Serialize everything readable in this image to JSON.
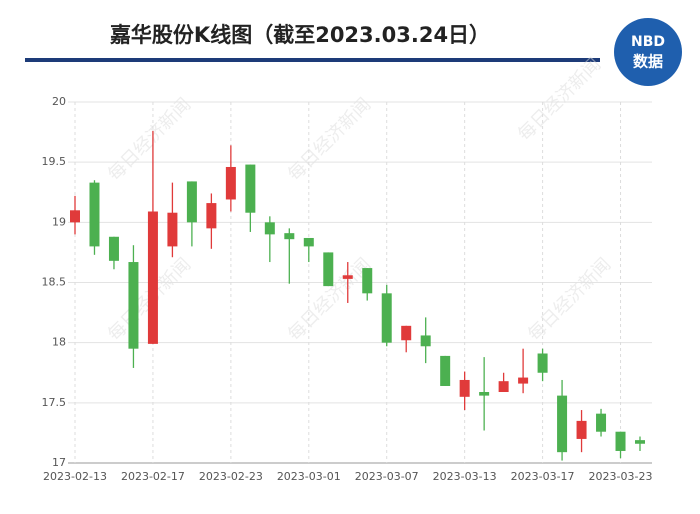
{
  "chart_data": {
    "type": "candlestick",
    "title": "嘉华股份K线图（截至2023.03.24日）",
    "logo": [
      "NBD",
      "数据"
    ],
    "watermark": "每日经济新闻",
    "categories": [
      "2023-02-13",
      null,
      null,
      null,
      "2023-02-17",
      null,
      null,
      null,
      "2023-02-23",
      null,
      null,
      null,
      "2023-03-01",
      null,
      null,
      null,
      "2023-03-07",
      null,
      null,
      null,
      "2023-03-13",
      null,
      null,
      null,
      "2023-03-17",
      null,
      null,
      null,
      "2023-03-23",
      null
    ],
    "open": [
      19.0,
      19.33,
      18.88,
      18.67,
      17.99,
      18.8,
      19.34,
      18.95,
      19.19,
      19.48,
      19.0,
      18.91,
      18.87,
      18.75,
      18.53,
      18.62,
      18.41,
      18.02,
      18.06,
      17.89,
      17.55,
      17.59,
      17.59,
      17.66,
      17.91,
      17.56,
      17.2,
      17.41,
      17.26,
      17.19
    ],
    "high": [
      19.22,
      19.35,
      18.88,
      18.81,
      19.76,
      19.33,
      19.34,
      19.24,
      19.64,
      19.48,
      19.05,
      18.95,
      18.87,
      18.75,
      18.67,
      18.62,
      18.48,
      18.14,
      18.21,
      17.89,
      17.76,
      17.88,
      17.75,
      17.95,
      17.95,
      17.69,
      17.44,
      17.45,
      17.26,
      17.22
    ],
    "low": [
      18.9,
      18.73,
      18.61,
      17.79,
      17.99,
      18.71,
      18.8,
      18.78,
      19.09,
      18.92,
      18.67,
      18.49,
      18.67,
      18.47,
      18.33,
      18.35,
      17.97,
      17.92,
      17.83,
      17.64,
      17.44,
      17.27,
      17.59,
      17.58,
      17.68,
      17.02,
      17.09,
      17.22,
      17.04,
      17.1
    ],
    "close": [
      19.1,
      18.8,
      18.68,
      17.95,
      19.09,
      19.08,
      19.0,
      19.16,
      19.46,
      19.08,
      18.9,
      18.86,
      18.8,
      18.47,
      18.56,
      18.41,
      18.0,
      18.14,
      17.97,
      17.64,
      17.69,
      17.56,
      17.68,
      17.71,
      17.75,
      17.09,
      17.35,
      17.26,
      17.1,
      17.16
    ],
    "up_color": "#e03a3a",
    "down_color": "#4cb050",
    "ylim": [
      17,
      20
    ],
    "yticks": [
      17,
      17.5,
      18,
      18.5,
      19,
      19.5,
      20
    ],
    "grid": true
  }
}
